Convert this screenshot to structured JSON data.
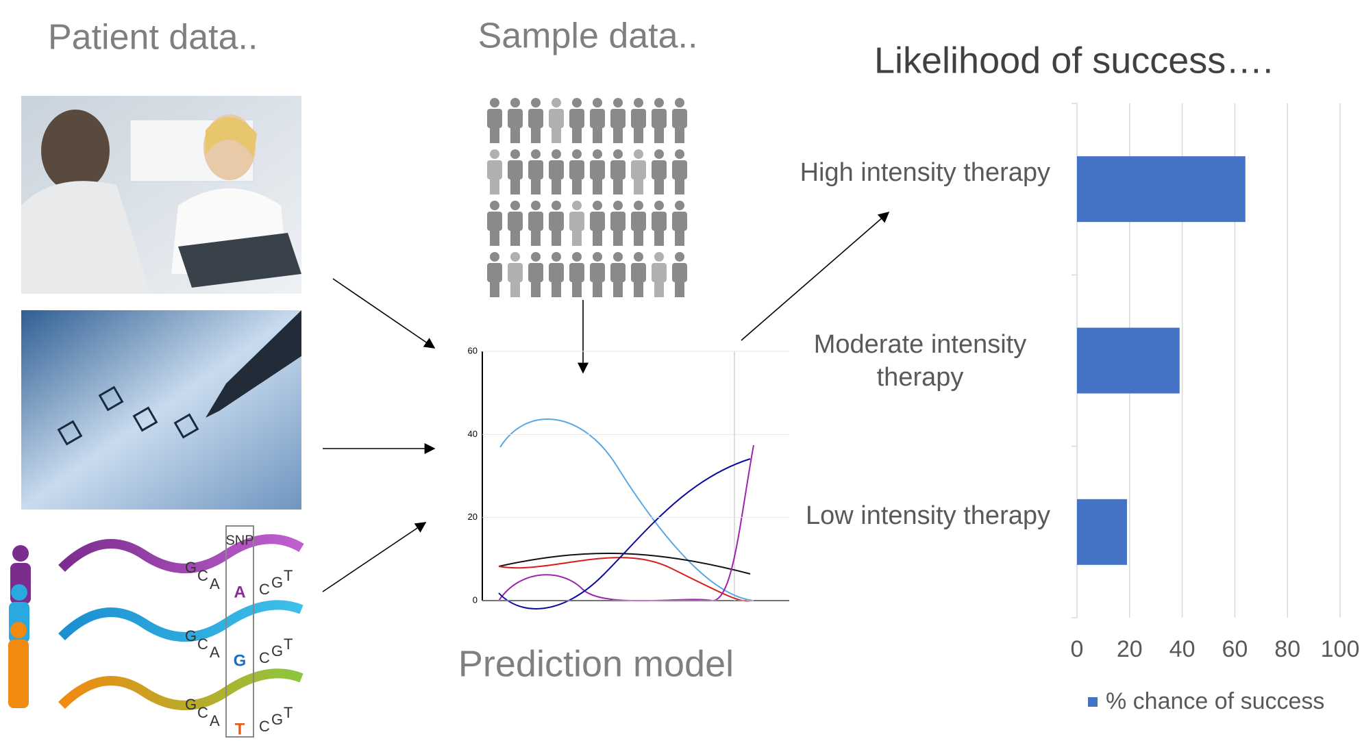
{
  "labels": {
    "patient": "Patient data..",
    "sample": "Sample data..",
    "model": "Prediction model"
  },
  "model_plot": {
    "ylim": [
      0,
      60
    ],
    "yticks": [
      0,
      20,
      40,
      60
    ]
  },
  "dna": {
    "snp_label": "SNP",
    "rows": [
      {
        "left": [
          "G",
          "C",
          "A"
        ],
        "snp": "A",
        "right": [
          "C",
          "G",
          "T"
        ]
      },
      {
        "left": [
          "G",
          "C",
          "A"
        ],
        "snp": "G",
        "right": [
          "C",
          "G",
          "T"
        ]
      },
      {
        "left": [
          "G",
          "C",
          "A"
        ],
        "snp": "T",
        "right": [
          "C",
          "G",
          "T"
        ]
      }
    ]
  },
  "chart_data": {
    "type": "hbar",
    "title": "Likelihood of success….",
    "categories": [
      "High intensity therapy",
      "Moderate intensity therapy",
      "Low intensity therapy"
    ],
    "series": [
      {
        "name": "% chance of success",
        "color": "#4472c4",
        "values": [
          64,
          39,
          19
        ]
      }
    ],
    "xlim": [
      0,
      100
    ],
    "xticks": [
      0,
      20,
      40,
      60,
      80,
      100
    ],
    "grid": true,
    "legend": "bottom"
  }
}
